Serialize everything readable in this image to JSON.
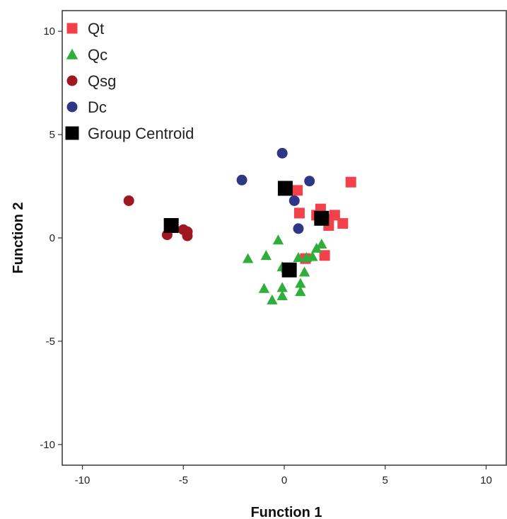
{
  "chart_data": {
    "type": "scatter",
    "xlabel": "Function 1",
    "ylabel": "Function 2",
    "xlim": [
      -11,
      11
    ],
    "ylim": [
      -11,
      11
    ],
    "xticks": [
      -10,
      -5,
      0,
      5,
      10
    ],
    "yticks": [
      -10,
      -5,
      0,
      5,
      10
    ],
    "grid": false,
    "legend_position": "top-left",
    "series": [
      {
        "name": "Qt",
        "marker": "square",
        "color": "#f2414a",
        "points": [
          [
            0.65,
            2.3
          ],
          [
            0.75,
            1.2
          ],
          [
            1.6,
            1.1
          ],
          [
            1.8,
            1.4
          ],
          [
            2.0,
            0.9
          ],
          [
            2.2,
            0.6
          ],
          [
            2.5,
            1.1
          ],
          [
            2.9,
            0.7
          ],
          [
            3.3,
            2.7
          ],
          [
            1.05,
            -1.0
          ],
          [
            2.0,
            -0.85
          ]
        ]
      },
      {
        "name": "Qc",
        "marker": "triangle",
        "color": "#2fae3c",
        "points": [
          [
            -0.3,
            -0.1
          ],
          [
            -1.8,
            -1.0
          ],
          [
            -0.9,
            -0.85
          ],
          [
            0.7,
            -0.95
          ],
          [
            1.1,
            -0.95
          ],
          [
            1.4,
            -0.9
          ],
          [
            1.6,
            -0.5
          ],
          [
            1.85,
            -0.3
          ],
          [
            0.1,
            -1.45
          ],
          [
            -0.1,
            -1.4
          ],
          [
            1.0,
            -1.65
          ],
          [
            0.8,
            -2.2
          ],
          [
            0.8,
            -2.6
          ],
          [
            -1.0,
            -2.45
          ],
          [
            -0.1,
            -2.4
          ],
          [
            -0.1,
            -2.8
          ],
          [
            -0.6,
            -3.0
          ]
        ]
      },
      {
        "name": "Qsg",
        "marker": "circle",
        "color": "#a0171f",
        "points": [
          [
            -7.7,
            1.8
          ],
          [
            -5.8,
            0.15
          ],
          [
            -5.0,
            0.4
          ],
          [
            -4.8,
            0.3
          ],
          [
            -4.8,
            0.1
          ]
        ]
      },
      {
        "name": "Dc",
        "marker": "circle",
        "color": "#2e3685",
        "points": [
          [
            -2.1,
            2.8
          ],
          [
            -0.1,
            4.1
          ],
          [
            1.25,
            2.75
          ],
          [
            0.5,
            1.8
          ],
          [
            0.7,
            0.45
          ]
        ]
      },
      {
        "name": "Group Centroid",
        "marker": "square-large",
        "color": "#000000",
        "points": [
          [
            -5.6,
            0.6
          ],
          [
            0.05,
            2.4
          ],
          [
            1.85,
            0.95
          ],
          [
            0.25,
            -1.55
          ]
        ]
      }
    ]
  }
}
